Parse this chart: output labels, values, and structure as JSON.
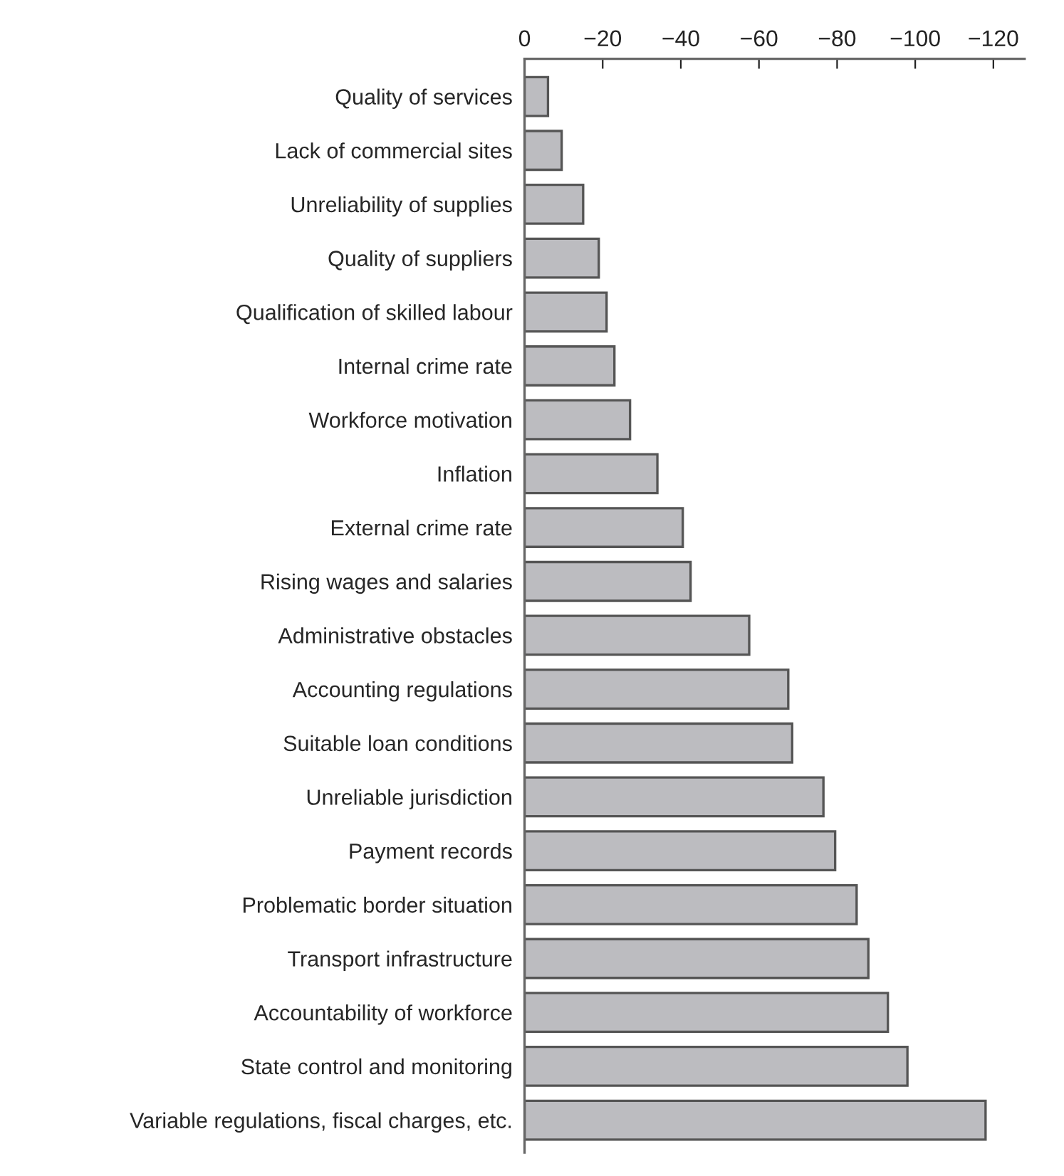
{
  "chart_data": {
    "type": "bar",
    "orientation": "horizontal",
    "categories": [
      "Quality of services",
      "Lack of commercial sites",
      "Unreliability of supplies",
      "Quality of suppliers",
      "Qualification of skilled labour",
      "Internal crime rate",
      "Workforce motivation",
      "Inflation",
      "External crime rate",
      "Rising wages and salaries",
      "Administrative obstacles",
      "Accounting regulations",
      "Suitable loan conditions",
      "Unreliable jurisdiction",
      "Payment records",
      "Problematic border situation",
      "Transport infrastructure",
      "Accountability of workforce",
      "State control and monitoring",
      "Variable regulations, fiscal charges, etc."
    ],
    "values": [
      -6,
      -9.5,
      -15,
      -19,
      -21,
      -23,
      -27,
      -34,
      -40.5,
      -42.5,
      -57.5,
      -67.5,
      -68.5,
      -76.5,
      -79.5,
      -85,
      -88,
      -93,
      -98,
      -118
    ],
    "color": "#bcbcc0",
    "xlim": [
      0,
      -128
    ],
    "xticks": [
      0,
      {
        "value": -20,
        "label": "−20"
      },
      {
        "value": -40,
        "label": "−40"
      },
      {
        "value": -60,
        "label": "−60"
      },
      {
        "value": -80,
        "label": "−80"
      },
      {
        "value": -100,
        "label": "−100"
      },
      {
        "value": -120,
        "label": "−120"
      }
    ],
    "grid": false,
    "legend": false
  }
}
